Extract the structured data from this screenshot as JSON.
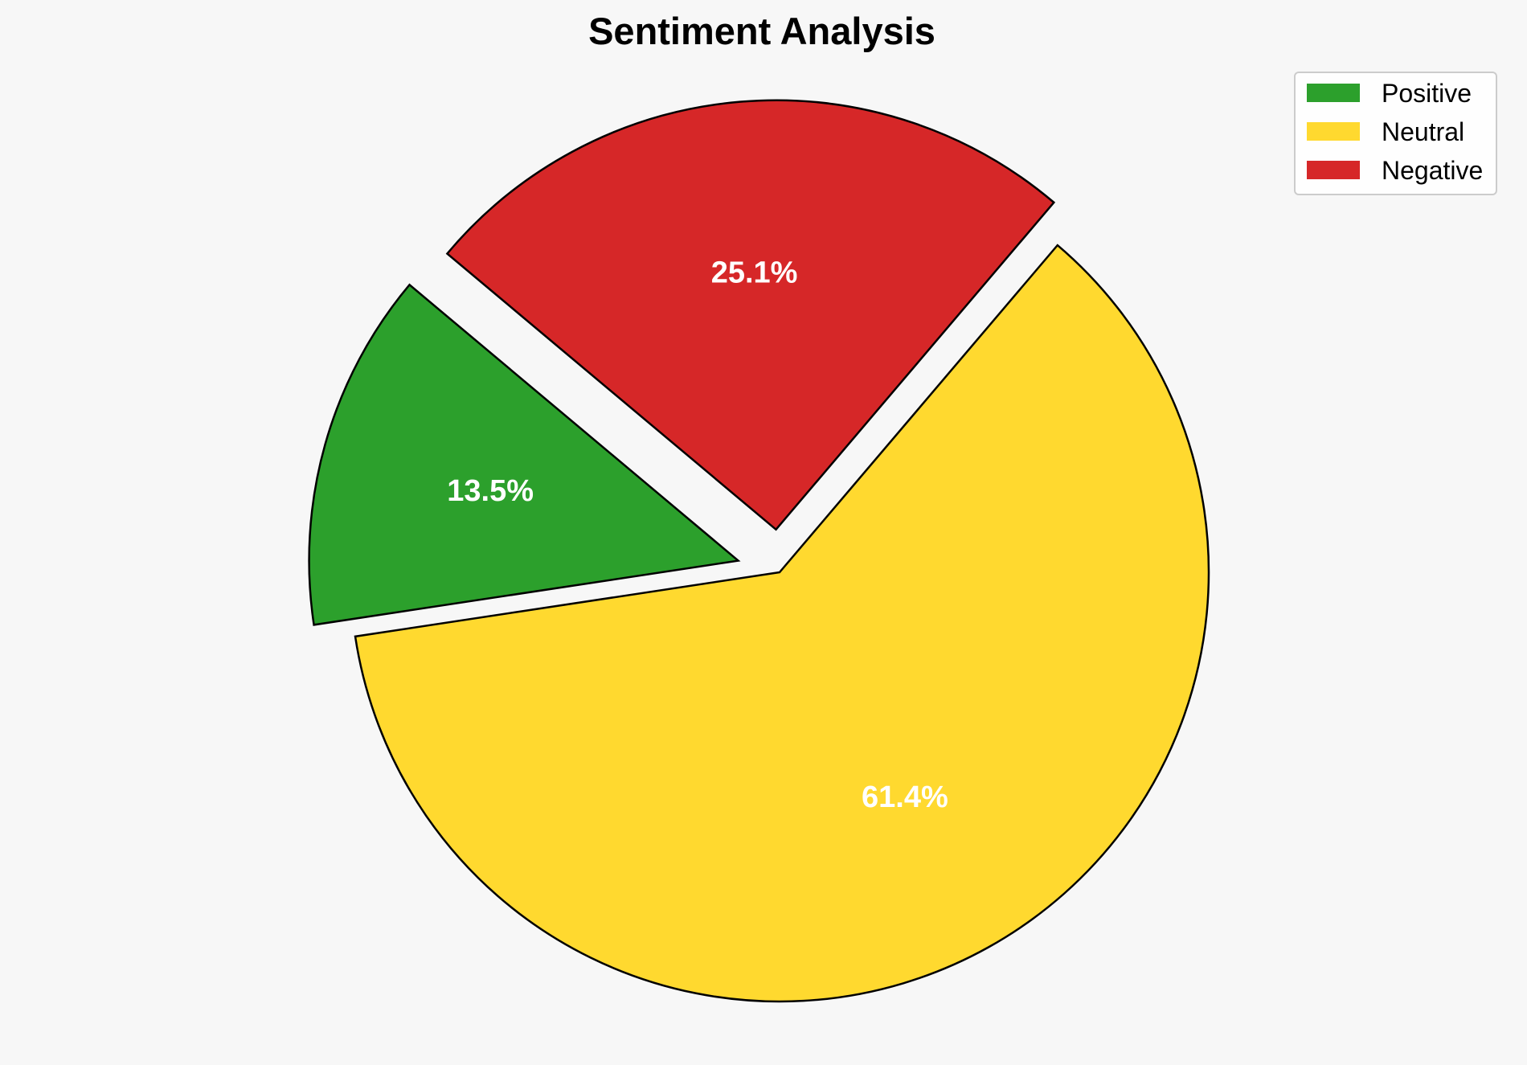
{
  "chart_data": {
    "type": "pie",
    "title": "Sentiment Analysis",
    "start_angle_deg": 140,
    "direction": "counterclockwise",
    "exploded": [
      "Positive",
      "Negative"
    ],
    "legend_placement": "top-right",
    "slices": [
      {
        "label": "Positive",
        "value": 13.5,
        "display": "13.5%",
        "color": "#2ca02c"
      },
      {
        "label": "Neutral",
        "value": 61.4,
        "display": "61.4%",
        "color": "#ffd92f"
      },
      {
        "label": "Negative",
        "value": 25.1,
        "display": "25.1%",
        "color": "#d62728"
      }
    ]
  }
}
